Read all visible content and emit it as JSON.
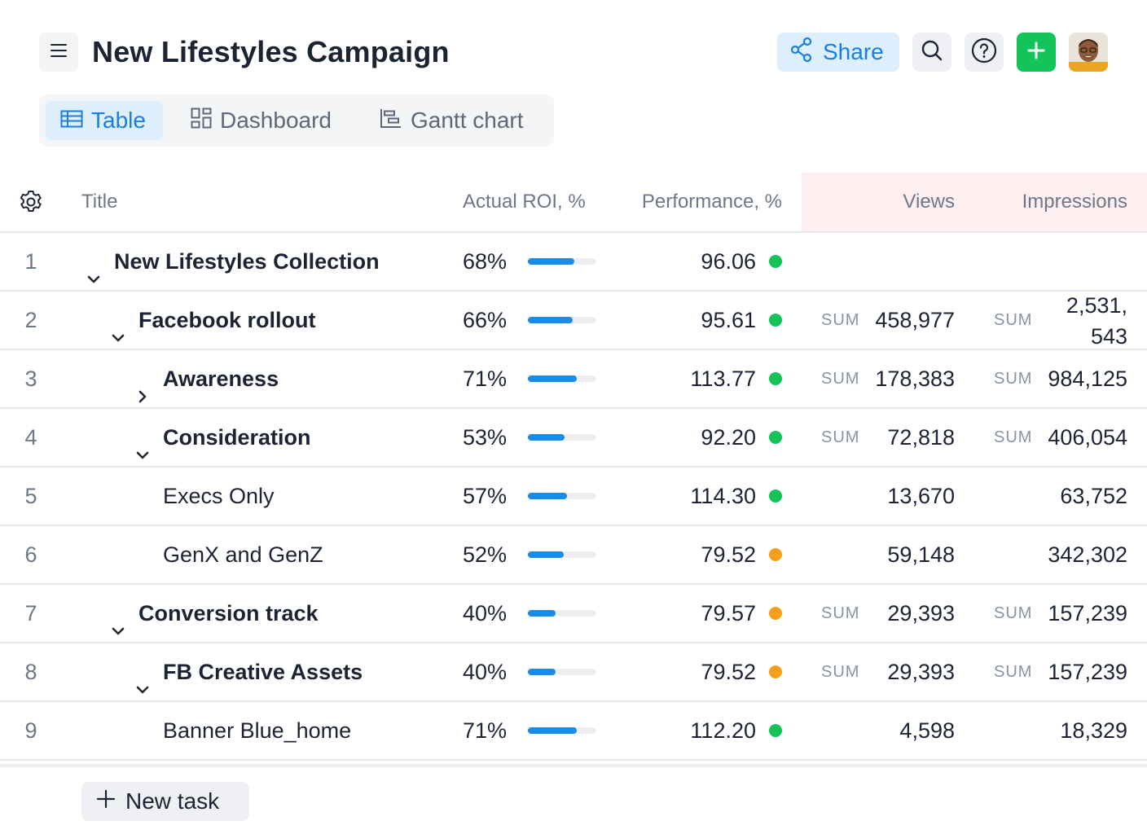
{
  "header": {
    "title": "New Lifestyles Campaign",
    "share_label": "Share"
  },
  "tabs": [
    {
      "label": "Table",
      "active": true
    },
    {
      "label": "Dashboard",
      "active": false
    },
    {
      "label": "Gantt chart",
      "active": false
    }
  ],
  "table": {
    "columns": {
      "title": "Title",
      "roi": "Actual ROI, %",
      "performance": "Performance, %",
      "views": "Views",
      "impressions": "Impressions"
    },
    "sum_label": "SUM",
    "rows": [
      {
        "num": "1",
        "title": "New Lifestyles Collection",
        "roi": "68%",
        "roi_value": 68,
        "performance": "96.06",
        "status": "green",
        "views": "",
        "views_sum": false,
        "impressions": "",
        "impressions_sum": false
      },
      {
        "num": "2",
        "title": "Facebook rollout",
        "roi": "66%",
        "roi_value": 66,
        "performance": "95.61",
        "status": "green",
        "views": "458,977",
        "views_sum": true,
        "impressions": "2,531, 543",
        "impressions_sum": true
      },
      {
        "num": "3",
        "title": "Awareness",
        "roi": "71%",
        "roi_value": 71,
        "performance": "113.77",
        "status": "green",
        "views": "178,383",
        "views_sum": true,
        "impressions": "984,125",
        "impressions_sum": true
      },
      {
        "num": "4",
        "title": "Consideration",
        "roi": "53%",
        "roi_value": 53,
        "performance": "92.20",
        "status": "green",
        "views": "72,818",
        "views_sum": true,
        "impressions": "406,054",
        "impressions_sum": true
      },
      {
        "num": "5",
        "title": "Execs Only",
        "roi": "57%",
        "roi_value": 57,
        "performance": "114.30",
        "status": "green",
        "views": "13,670",
        "views_sum": false,
        "impressions": "63,752",
        "impressions_sum": false
      },
      {
        "num": "6",
        "title": "GenX and GenZ",
        "roi": "52%",
        "roi_value": 52,
        "performance": "79.52",
        "status": "orange",
        "views": "59,148",
        "views_sum": false,
        "impressions": "342,302",
        "impressions_sum": false
      },
      {
        "num": "7",
        "title": "Conversion track",
        "roi": "40%",
        "roi_value": 40,
        "performance": "79.57",
        "status": "orange",
        "views": "29,393",
        "views_sum": true,
        "impressions": "157,239",
        "impressions_sum": true
      },
      {
        "num": "8",
        "title": "FB Creative Assets",
        "roi": "40%",
        "roi_value": 40,
        "performance": "79.52",
        "status": "orange",
        "views": "29,393",
        "views_sum": true,
        "impressions": "157,239",
        "impressions_sum": true
      },
      {
        "num": "9",
        "title": "Banner Blue_home",
        "roi": "71%",
        "roi_value": 71,
        "performance": "112.20",
        "status": "green",
        "views": "4,598",
        "views_sum": false,
        "impressions": "18,329",
        "impressions_sum": false
      }
    ]
  },
  "footer": {
    "new_task_label": "New task"
  },
  "colors": {
    "accent": "#1a7fe0",
    "status_green": "#13c45a",
    "status_orange": "#f5a01a",
    "add_button": "#13c45a"
  },
  "icons": {
    "menu": "hamburger-icon",
    "share": "share-nodes-icon",
    "search": "search-icon",
    "help": "help-circle-icon",
    "add": "plus-icon",
    "settings": "gear-icon",
    "table": "table-icon",
    "dashboard": "dashboard-icon",
    "gantt": "gantt-icon"
  }
}
